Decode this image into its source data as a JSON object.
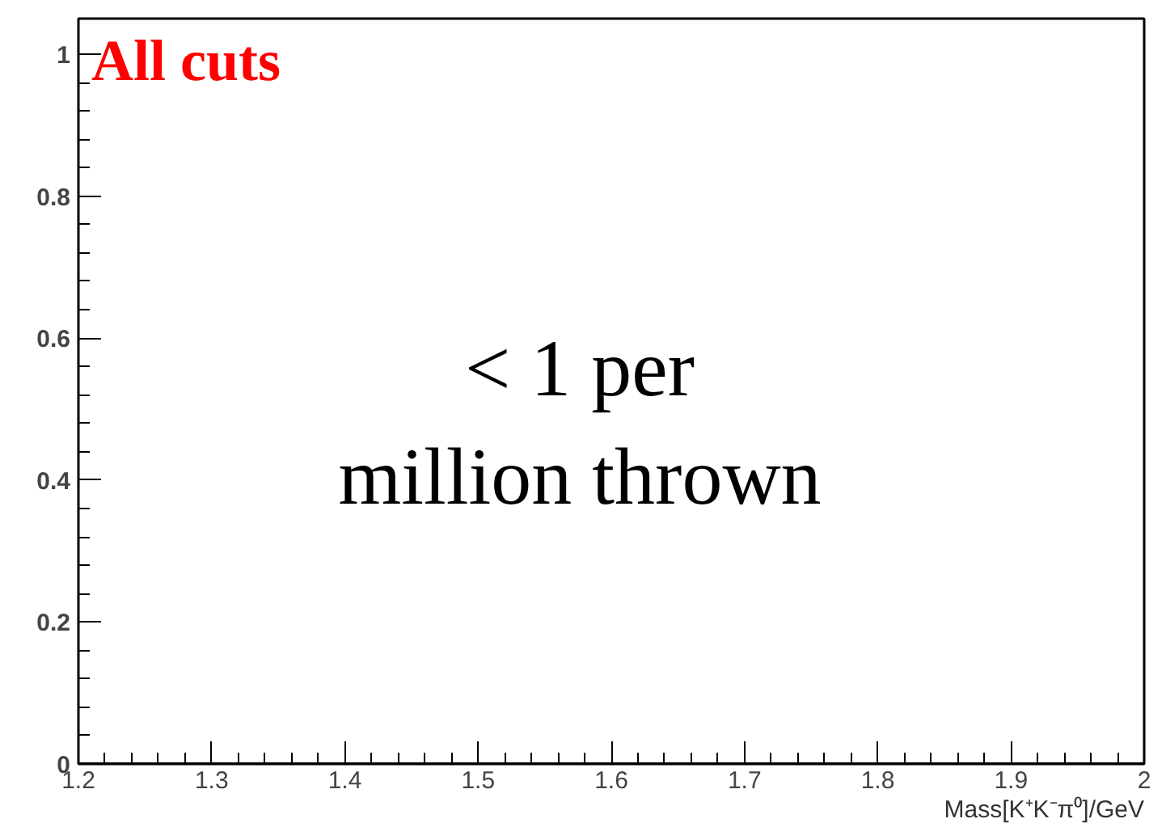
{
  "chart_data": {
    "type": "histogram",
    "bins": [
      1.2,
      2
    ],
    "values": [
      0
    ],
    "color": "#000000",
    "xlabel": "Mass[K⁺K⁻π⁰]/GeV",
    "xlim": [
      1.2,
      2
    ],
    "xticks": [
      1.2,
      1.3,
      1.4,
      1.5,
      1.6,
      1.7,
      1.8,
      1.9,
      2
    ],
    "ylim": [
      0,
      1.05
    ],
    "yticks": [
      0,
      0.2,
      0.4,
      0.6,
      0.8,
      1
    ],
    "annotations": [
      "All cuts",
      "< 1 per\nmillion thrown"
    ]
  }
}
